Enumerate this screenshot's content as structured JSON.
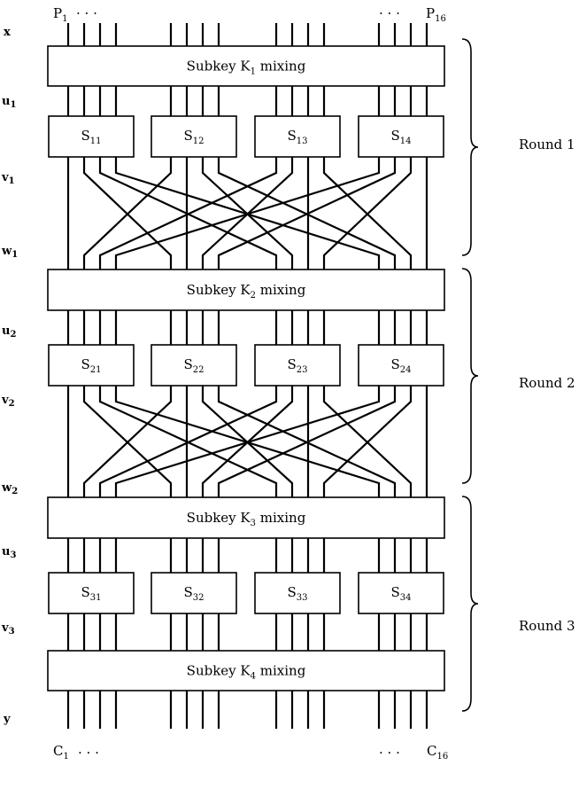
{
  "top_labels": {
    "left": "P",
    "left_sub": "1",
    "left_dots": ". . .",
    "right_dots": ". . .",
    "right": "P",
    "right_sub": "16"
  },
  "bottom_labels": {
    "left": "C",
    "left_sub": "1",
    "left_dots": ". . .",
    "right_dots": ". . .",
    "right": "C",
    "right_sub": "16"
  },
  "row_labels": {
    "x": "x",
    "u1": "u",
    "u1_sub": "1",
    "v1": "v",
    "v1_sub": "1",
    "w1": "w",
    "w1_sub": "1",
    "u2": "u",
    "u2_sub": "2",
    "v2": "v",
    "v2_sub": "2",
    "w2": "w",
    "w2_sub": "2",
    "u3": "u",
    "u3_sub": "3",
    "v3": "v",
    "v3_sub": "3",
    "y": "y"
  },
  "mixing": [
    {
      "pre": "Subkey K",
      "sub": "1",
      "post": " mixing"
    },
    {
      "pre": "Subkey K",
      "sub": "2",
      "post": " mixing"
    },
    {
      "pre": "Subkey K",
      "sub": "3",
      "post": " mixing"
    },
    {
      "pre": "Subkey K",
      "sub": "4",
      "post": " mixing"
    }
  ],
  "sboxes": [
    [
      {
        "name": "S",
        "sub": "11"
      },
      {
        "name": "S",
        "sub": "12"
      },
      {
        "name": "S",
        "sub": "13"
      },
      {
        "name": "S",
        "sub": "14"
      }
    ],
    [
      {
        "name": "S",
        "sub": "21"
      },
      {
        "name": "S",
        "sub": "22"
      },
      {
        "name": "S",
        "sub": "23"
      },
      {
        "name": "S",
        "sub": "24"
      }
    ],
    [
      {
        "name": "S",
        "sub": "31"
      },
      {
        "name": "S",
        "sub": "32"
      },
      {
        "name": "S",
        "sub": "33"
      },
      {
        "name": "S",
        "sub": "34"
      }
    ]
  ],
  "rounds": [
    "Round 1",
    "Round 2",
    "Round 3"
  ]
}
